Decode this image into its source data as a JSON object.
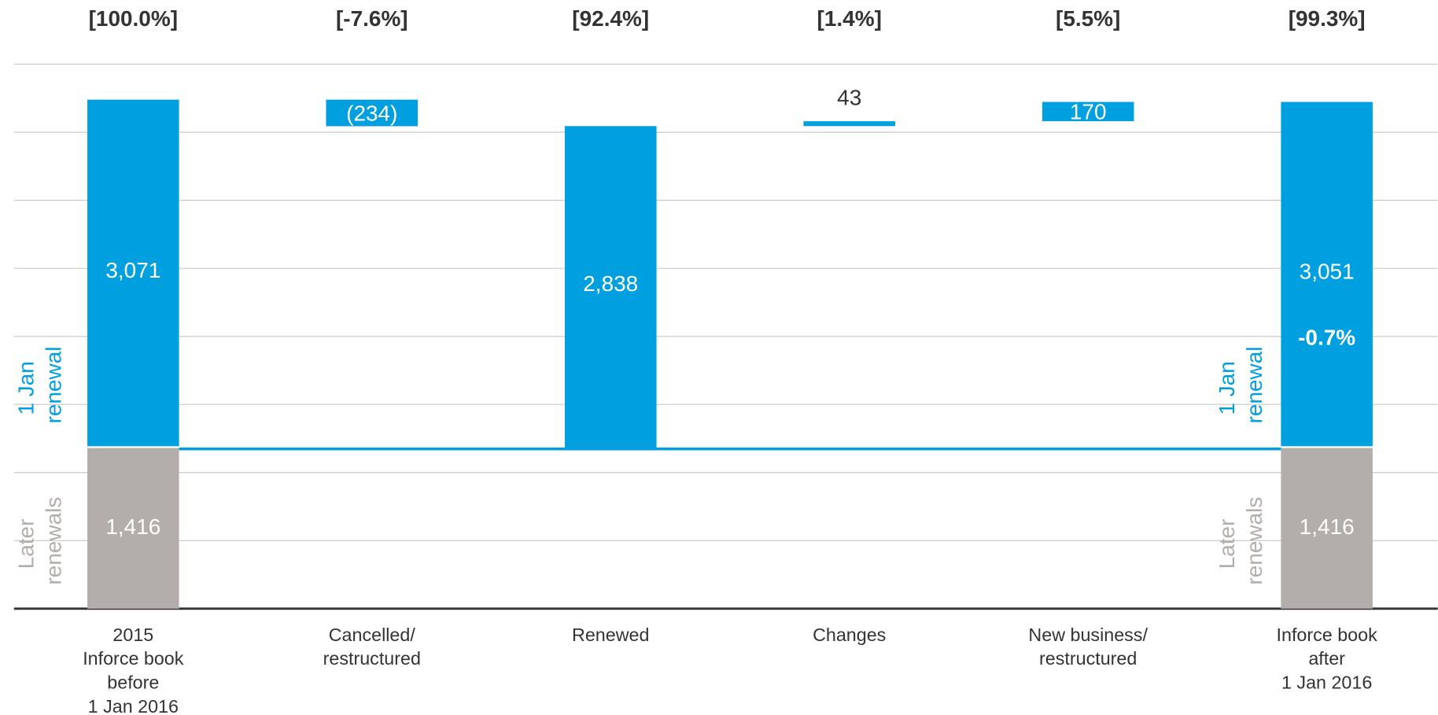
{
  "chart_data": {
    "type": "waterfall",
    "categories": [
      [
        "2015",
        "Inforce book",
        "before",
        "1 Jan 2016"
      ],
      [
        "Cancelled/",
        "restructured"
      ],
      [
        "Renewed"
      ],
      [
        "Changes"
      ],
      [
        "New business/",
        "restructured"
      ],
      [
        "Inforce book",
        "after",
        "1 Jan 2016"
      ]
    ],
    "series": [
      {
        "name": "Later renewals",
        "color": "#b3adab",
        "values": [
          1416,
          null,
          null,
          null,
          null,
          1416
        ],
        "value_labels": [
          "1,416",
          null,
          null,
          null,
          null,
          "1,416"
        ]
      },
      {
        "name": "1 Jan renewal",
        "color": "#009fdf",
        "values": [
          3071,
          -234,
          2838,
          43,
          170,
          3051
        ],
        "value_labels": [
          "3,071",
          "(234)",
          "2,838",
          "43",
          "170",
          "3,051"
        ]
      }
    ],
    "total_bars": [
      0,
      2,
      5
    ],
    "bar_annotations": [
      "[100.0%]",
      "[-7.6%]",
      "[92.4%]",
      "[1.4%]",
      "[5.5%]",
      "[99.3%]"
    ],
    "change_annotation": "-0.7%",
    "ylim": [
      0,
      4800
    ],
    "yticks": [
      0,
      600,
      1200,
      1800,
      2400,
      3000,
      3600,
      4200,
      4800
    ],
    "grid": true
  }
}
